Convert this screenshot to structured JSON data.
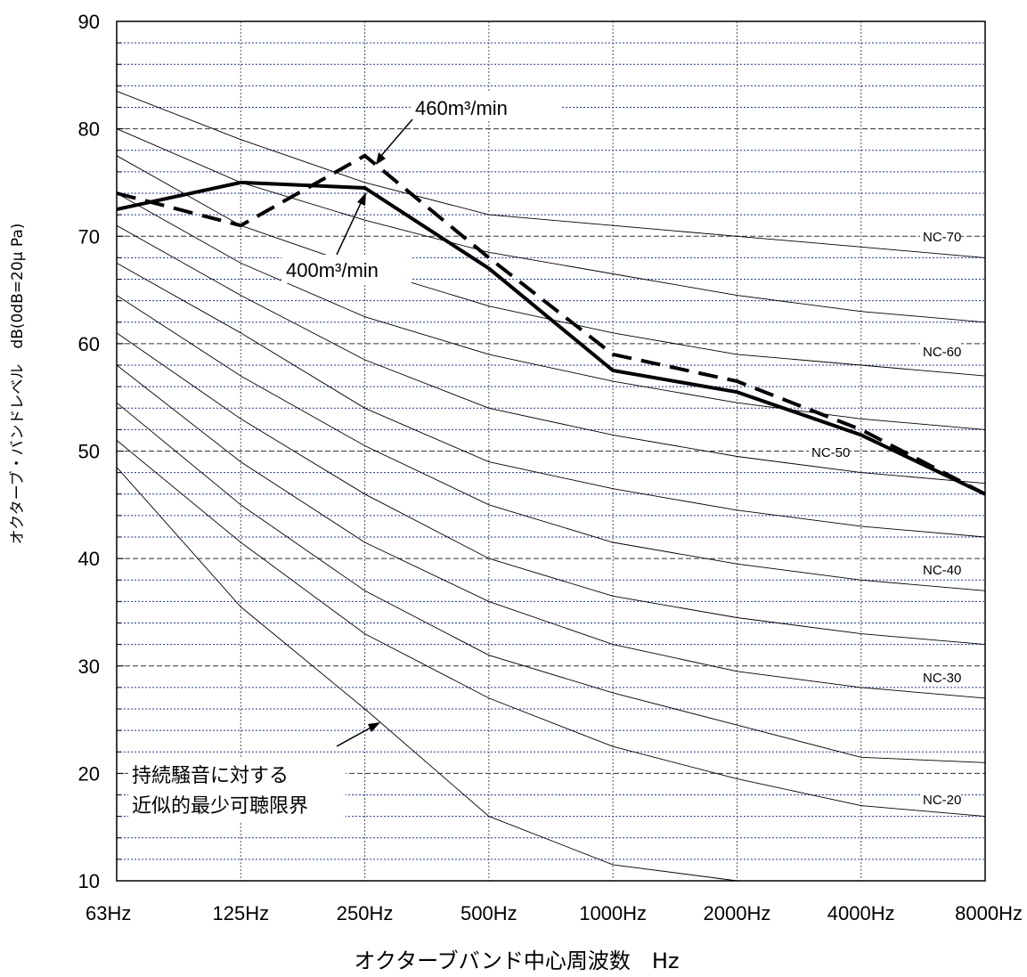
{
  "chart_data": {
    "type": "line",
    "title": "",
    "xlabel": "オクターブバンド中心周波数　Hz",
    "ylabel": "オクターブ・バンドレベル　dB(0dB=20μ Pa)",
    "categories": [
      "63Hz",
      "125Hz",
      "250Hz",
      "500Hz",
      "1000Hz",
      "2000Hz",
      "4000Hz",
      "8000Hz"
    ],
    "ylim": [
      10,
      90
    ],
    "y_major_ticks": [
      10,
      20,
      30,
      40,
      50,
      60,
      70,
      80,
      90
    ],
    "grid": "horizontal minor lines every 2 dB, vertical lines at each octave band",
    "series": [
      {
        "name": "400m³/min",
        "style": "solid",
        "values": [
          72.5,
          75,
          74.5,
          67,
          57.5,
          55.5,
          51.5,
          46
        ]
      },
      {
        "name": "460m³/min",
        "style": "dashed",
        "values": [
          74,
          71,
          77.5,
          68,
          59,
          56.5,
          52,
          46
        ]
      }
    ],
    "nc_curves": [
      {
        "name": "NC-70",
        "values": [
          83.5,
          79,
          75,
          72,
          71,
          70,
          69,
          68
        ]
      },
      {
        "name": "",
        "values": [
          80,
          75,
          71.5,
          68.5,
          66.5,
          64.5,
          63,
          62
        ]
      },
      {
        "name": "NC-60",
        "values": [
          77.5,
          71,
          67,
          63.5,
          61,
          59,
          58,
          57
        ]
      },
      {
        "name": "",
        "values": [
          74,
          67.5,
          62.5,
          59,
          56.5,
          54.5,
          53,
          52
        ]
      },
      {
        "name": "NC-50",
        "values": [
          71,
          64.5,
          58.5,
          54,
          51.5,
          49.5,
          48,
          47
        ]
      },
      {
        "name": "",
        "values": [
          67.5,
          61,
          54,
          49,
          46.5,
          44.5,
          43,
          42
        ]
      },
      {
        "name": "NC-40",
        "values": [
          64.5,
          57,
          50.5,
          45,
          41.5,
          39.5,
          38,
          37
        ]
      },
      {
        "name": "",
        "values": [
          61,
          53,
          46,
          40,
          36.5,
          34.5,
          33,
          32
        ]
      },
      {
        "name": "NC-30",
        "values": [
          58,
          49,
          41.5,
          36,
          32,
          29.5,
          28,
          27
        ]
      },
      {
        "name": "",
        "values": [
          54.5,
          45,
          37,
          31,
          27.5,
          24.5,
          21.5,
          21
        ]
      },
      {
        "name": "NC-20",
        "values": [
          51,
          41.5,
          33,
          27,
          22.5,
          19.5,
          17,
          16
        ]
      }
    ],
    "threshold_curve": {
      "values": [
        48.5,
        35.5,
        26,
        16,
        11.5,
        10
      ]
    },
    "nc_label_text": [
      "NC-70",
      "NC-60",
      "NC-50",
      "NC-40",
      "NC-30",
      "NC-20"
    ],
    "annotations": {
      "label_460": "460m³/min",
      "label_400": "400m³/min",
      "threshold_line1": "持続騒音に対する",
      "threshold_line2": "近似的最少可聴限界"
    }
  }
}
